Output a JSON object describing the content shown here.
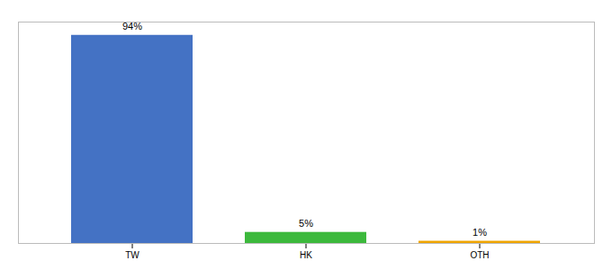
{
  "chart_data": {
    "type": "bar",
    "categories": [
      "TW",
      "HK",
      "OTH"
    ],
    "values": [
      94,
      5,
      1
    ],
    "value_labels": [
      "94%",
      "5%",
      "1%"
    ],
    "colors": [
      "#4472C4",
      "#3CB93C",
      "#F0A500"
    ],
    "ylim": [
      0,
      100
    ],
    "data_labels": true,
    "tick_labels": "x",
    "grid": false
  }
}
